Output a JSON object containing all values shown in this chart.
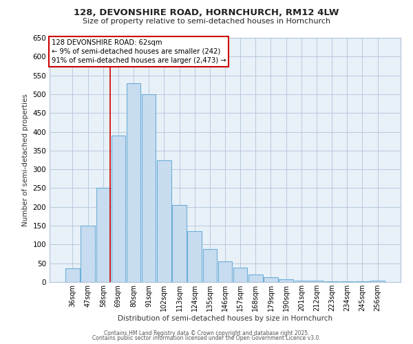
{
  "title": "128, DEVONSHIRE ROAD, HORNCHURCH, RM12 4LW",
  "subtitle": "Size of property relative to semi-detached houses in Hornchurch",
  "xlabel": "Distribution of semi-detached houses by size in Hornchurch",
  "ylabel": "Number of semi-detached properties",
  "bar_labels": [
    "36sqm",
    "47sqm",
    "58sqm",
    "69sqm",
    "80sqm",
    "91sqm",
    "102sqm",
    "113sqm",
    "124sqm",
    "135sqm",
    "146sqm",
    "157sqm",
    "168sqm",
    "179sqm",
    "190sqm",
    "201sqm",
    "212sqm",
    "223sqm",
    "234sqm",
    "245sqm",
    "256sqm"
  ],
  "bar_values": [
    37,
    150,
    250,
    390,
    530,
    500,
    325,
    205,
    135,
    87,
    55,
    38,
    20,
    12,
    7,
    4,
    3,
    2,
    2,
    1,
    4
  ],
  "bar_color": "#c8dcf0",
  "bar_edge_color": "#6baed6",
  "plot_bg_color": "#e8f0f8",
  "ylim": [
    0,
    650
  ],
  "yticks": [
    0,
    50,
    100,
    150,
    200,
    250,
    300,
    350,
    400,
    450,
    500,
    550,
    600,
    650
  ],
  "property_line_x": 2.45,
  "annotation_text": "128 DEVONSHIRE ROAD: 62sqm\n← 9% of semi-detached houses are smaller (242)\n91% of semi-detached houses are larger (2,473) →",
  "annotation_box_color": "#ffffff",
  "annotation_box_edge_color": "#cc0000",
  "vline_color": "#cc0000",
  "footer1": "Contains HM Land Registry data © Crown copyright and database right 2025.",
  "footer2": "Contains public sector information licensed under the Open Government Licence v3.0.",
  "background_color": "#ffffff",
  "grid_color": "#b0c4d8"
}
